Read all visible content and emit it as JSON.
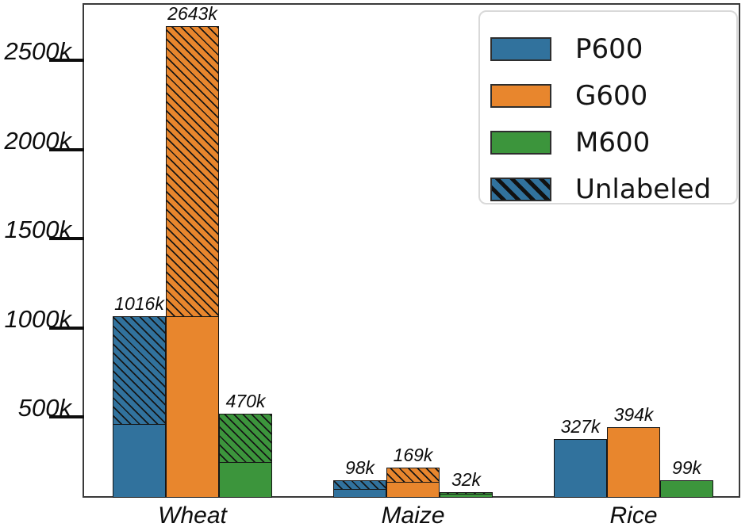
{
  "figure": {
    "kind": "grouped-stacked bar figure",
    "background": "#ffffff",
    "frame_color": "#3a3a3a",
    "bar_edge_color": "#161616"
  },
  "legend": {
    "items": [
      {
        "label": "P600",
        "swatch": "solid",
        "color": "#31729D"
      },
      {
        "label": "G600",
        "swatch": "solid",
        "color": "#E8862D"
      },
      {
        "label": "M600",
        "swatch": "solid",
        "color": "#3C953C"
      },
      {
        "label": "Unlabeled",
        "swatch": "hatched",
        "color": "#31729D"
      }
    ]
  },
  "chart_data": {
    "type": "bar",
    "title": "",
    "xlabel": "",
    "ylabel": "",
    "unit": "k",
    "categories": [
      "Wheat",
      "Maize",
      "Rice"
    ],
    "series": [
      {
        "name": "P600",
        "color": "#31729D",
        "totals": [
          1016,
          98,
          327
        ],
        "labeled": [
          415,
          49,
          327
        ],
        "unlabeled": [
          601,
          49,
          0
        ]
      },
      {
        "name": "G600",
        "color": "#E8862D",
        "totals": [
          2643,
          169,
          394
        ],
        "labeled": [
          1015,
          89,
          394
        ],
        "unlabeled": [
          1628,
          80,
          0
        ]
      },
      {
        "name": "M600",
        "color": "#3C953C",
        "totals": [
          470,
          32,
          99
        ],
        "labeled": [
          198,
          20,
          99
        ],
        "unlabeled": [
          272,
          12,
          0
        ]
      }
    ],
    "bar_value_labels": [
      [
        "1016k",
        "2643k",
        "470k"
      ],
      [
        "98k",
        "169k",
        "32k"
      ],
      [
        "327k",
        "394k",
        "99k"
      ]
    ],
    "yticks": [
      {
        "value": 500,
        "label": "500k"
      },
      {
        "value": 1000,
        "label": "1000k"
      },
      {
        "value": 1500,
        "label": "1500k"
      },
      {
        "value": 2000,
        "label": "2000k"
      },
      {
        "value": 2500,
        "label": "2500k"
      }
    ],
    "ylim": [
      0,
      2770
    ],
    "grid": false,
    "legend_position": "upper right",
    "legend_entries": [
      "P600",
      "G600",
      "M600",
      "Unlabeled"
    ],
    "hatch_meaning": "hatched segment = Unlabeled portion stacked on labeled portion"
  }
}
